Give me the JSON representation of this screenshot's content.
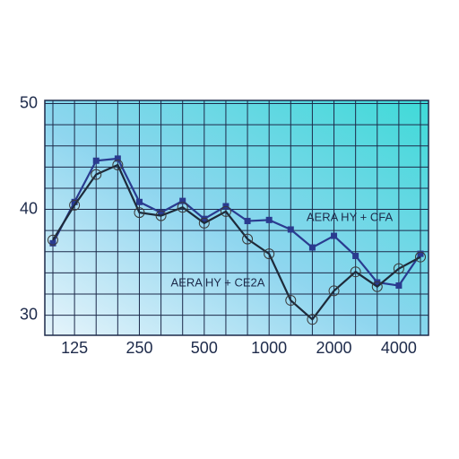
{
  "chart_data": {
    "type": "line",
    "categories": [
      null,
      "125",
      null,
      null,
      "250",
      null,
      null,
      "500",
      null,
      null,
      "1000",
      null,
      null,
      "2000",
      null,
      null,
      "4000",
      null
    ],
    "series": [
      {
        "name": "AERA HY + CFA",
        "color": "#2a3b8f",
        "marker": "square",
        "values": [
          36.8,
          40.7,
          44.6,
          44.8,
          40.7,
          39.7,
          40.8,
          39.1,
          40.3,
          38.9,
          39.0,
          38.1,
          36.4,
          37.5,
          35.6,
          33.1,
          32.8,
          35.8
        ]
      },
      {
        "name": "AERA HY + CE2A",
        "color": "#1e2a3a",
        "marker": "circle",
        "values": [
          37.1,
          40.4,
          43.3,
          44.2,
          39.7,
          39.4,
          40.2,
          38.7,
          39.8,
          37.2,
          35.8,
          31.4,
          29.6,
          32.3,
          34.1,
          32.7,
          34.4,
          35.5
        ]
      }
    ],
    "ylim": [
      28.1,
      50.3
    ],
    "yticks": [
      30,
      40,
      50
    ],
    "yticks_minor": [
      30,
      32,
      34,
      36,
      38,
      40,
      42,
      44,
      46,
      48,
      50
    ],
    "grid": true
  }
}
